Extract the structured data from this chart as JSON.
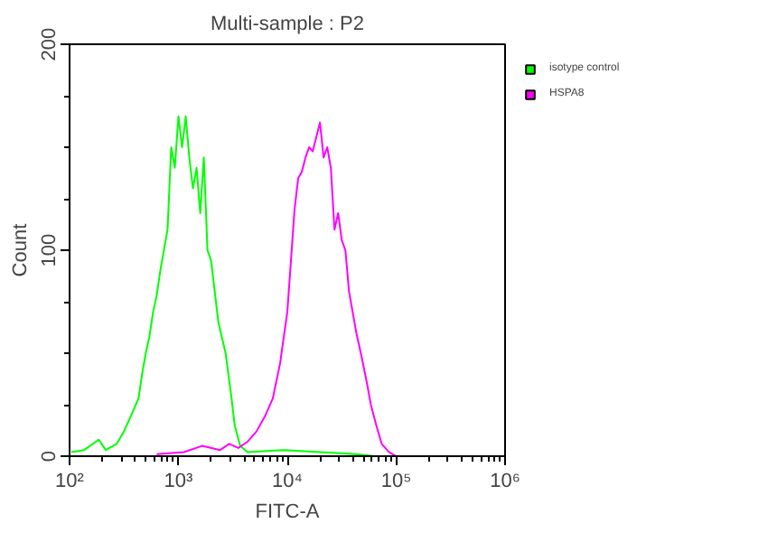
{
  "chart_data": {
    "type": "line",
    "title": "Multi-sample : P2",
    "xlabel": "FITC-A",
    "ylabel": "Count",
    "log": "x",
    "xlim": [
      100,
      1000000
    ],
    "ylim": [
      0,
      200
    ],
    "xticks": [
      {
        "value": 100,
        "label": "10²"
      },
      {
        "value": 1000,
        "label": "10³"
      },
      {
        "value": 10000,
        "label": "10⁴"
      },
      {
        "value": 100000,
        "label": "10⁵"
      },
      {
        "value": 1000000,
        "label": "10⁶"
      }
    ],
    "yticks": [
      0,
      100,
      200
    ],
    "grid": false,
    "legend": "top right",
    "line_style": "solid",
    "marker": "none",
    "series": [
      {
        "name": "isotype control",
        "color": "#00ff00",
        "x": [
          104,
          136,
          185,
          215,
          271,
          316,
          369,
          430,
          464,
          501,
          541,
          585,
          631,
          681,
          794,
          858,
          926,
          1000,
          1080,
          1166,
          1259,
          1359,
          1468,
          1585,
          1711,
          1848,
          1995,
          2154,
          2326,
          2712,
          3043,
          3286,
          3687,
          4300,
          9260,
          19950,
          43000,
          63100
        ],
        "values": [
          2,
          3,
          8,
          3,
          6,
          12,
          20,
          28,
          40,
          50,
          58,
          70,
          78,
          90,
          110,
          150,
          140,
          165,
          150,
          165,
          145,
          130,
          140,
          118,
          145,
          100,
          95,
          80,
          65,
          50,
          30,
          15,
          5,
          2,
          3,
          2,
          1,
          0
        ]
      },
      {
        "name": "HSPA8",
        "color": "#ff00ff",
        "x": [
          631,
          1122,
          1648,
          2418,
          2929,
          3548,
          4300,
          5208,
          6310,
          7356,
          8577,
          10000,
          10800,
          11660,
          12590,
          13590,
          14680,
          15850,
          17110,
          18480,
          19950,
          21540,
          23260,
          25120,
          27120,
          29290,
          31620,
          34150,
          36870,
          39810,
          42990,
          48230,
          54120,
          58480,
          65610,
          73560,
          85770,
          100000
        ],
        "values": [
          1,
          2,
          5,
          3,
          6,
          4,
          7,
          12,
          20,
          28,
          45,
          70,
          95,
          120,
          135,
          138,
          145,
          150,
          148,
          155,
          162,
          145,
          150,
          140,
          110,
          118,
          105,
          100,
          80,
          70,
          60,
          48,
          35,
          25,
          15,
          6,
          2,
          0
        ]
      }
    ]
  }
}
